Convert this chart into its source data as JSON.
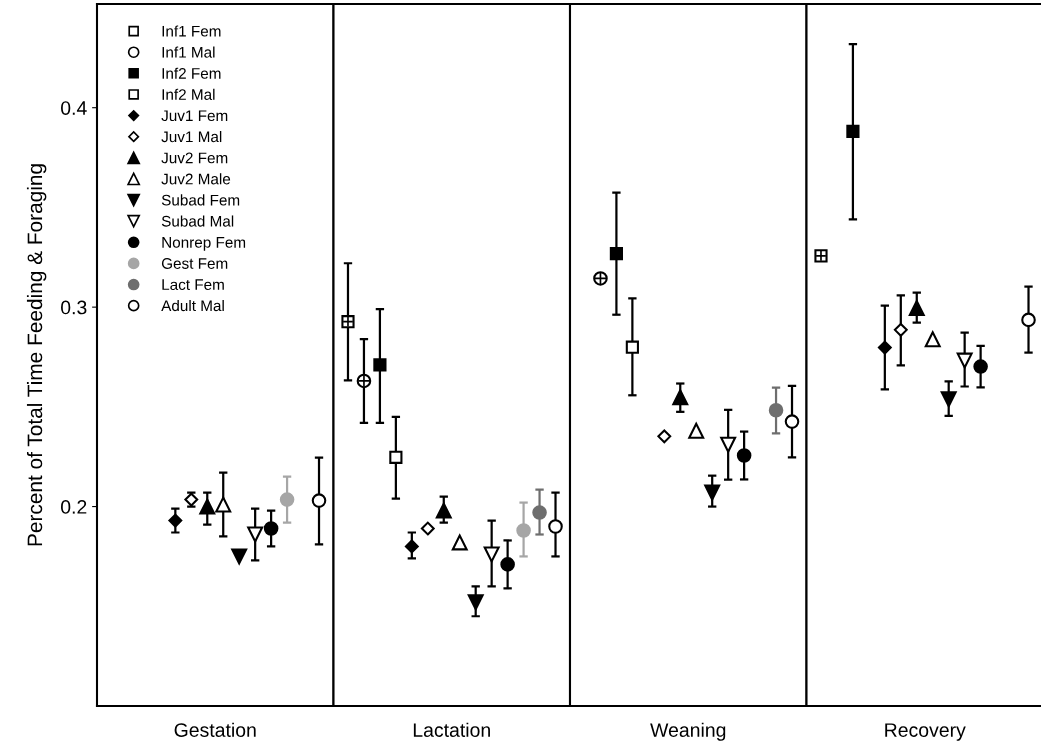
{
  "chart_data": {
    "type": "scatter",
    "ylabel": "Percent of Total Time Feeding & Foraging",
    "categories": [
      "Gestation",
      "Lactation",
      "Weaning",
      "Recovery"
    ],
    "ylim": [
      0.1,
      0.452
    ],
    "yticks": [
      0.2,
      0.3,
      0.4
    ],
    "grid": false,
    "legend": "top left",
    "series": [
      {
        "name": "Inf1 Fem",
        "color": "#000000",
        "marker": "square-plus",
        "values": [
          null,
          0.2927,
          null,
          0.3257
        ],
        "errors": [
          null,
          [
            0.2633,
            0.322
          ],
          null,
          null
        ]
      },
      {
        "name": "Inf1 Mal",
        "color": "#000000",
        "marker": "circle-plus",
        "values": [
          null,
          0.263,
          0.3144,
          null
        ],
        "errors": [
          null,
          [
            0.242,
            0.284
          ],
          null,
          null
        ]
      },
      {
        "name": "Inf2 Fem",
        "color": "#000000",
        "marker": "square",
        "values": [
          null,
          0.271,
          0.3268,
          0.3881
        ],
        "errors": [
          null,
          [
            0.242,
            0.299
          ],
          [
            0.2962,
            0.3574
          ],
          [
            0.344,
            0.4319
          ]
        ]
      },
      {
        "name": "Inf2 Mal",
        "color": "#000000",
        "marker": "square-open",
        "values": [
          null,
          0.2247,
          0.2799,
          null
        ],
        "errors": [
          null,
          [
            0.204,
            0.245
          ],
          [
            0.2558,
            0.3044
          ],
          null
        ]
      },
      {
        "name": "Juv1 Fem",
        "color": "#000000",
        "marker": "diamond",
        "values": [
          0.193,
          0.18,
          null,
          0.2797
        ],
        "errors": [
          [
            0.187,
            0.199
          ],
          [
            0.174,
            0.187
          ],
          null,
          [
            0.2588,
            0.3008
          ]
        ]
      },
      {
        "name": "Juv1 Mal",
        "color": "#000000",
        "marker": "diamond-open",
        "values": [
          0.2035,
          0.189,
          0.2352,
          0.2886
        ],
        "errors": [
          [
            0.2,
            0.207
          ],
          null,
          null,
          [
            0.2708,
            0.3059
          ]
        ]
      },
      {
        "name": "Juv2 Fem",
        "color": "#000000",
        "marker": "triangle",
        "values": [
          0.2,
          0.198,
          0.2548,
          0.2996
        ],
        "errors": [
          [
            0.191,
            0.207
          ],
          [
            0.192,
            0.205
          ],
          [
            0.2475,
            0.2617
          ],
          [
            0.2922,
            0.3073
          ]
        ]
      },
      {
        "name": "Juv2 Male",
        "color": "#000000",
        "marker": "triangle-open",
        "values": [
          0.201,
          0.182,
          0.238,
          0.2839
        ],
        "errors": [
          [
            0.185,
            0.217
          ],
          null,
          null,
          null
        ]
      },
      {
        "name": "Subad Fem",
        "color": "#000000",
        "marker": "triangle-down",
        "values": [
          0.175,
          0.152,
          0.207,
          0.2538
        ],
        "errors": [
          null,
          [
            0.145,
            0.16
          ],
          [
            0.2,
            0.2155
          ],
          [
            0.2455,
            0.2628
          ]
        ]
      },
      {
        "name": "Subad Mal",
        "color": "#000000",
        "marker": "triangle-down-open",
        "values": [
          0.186,
          0.176,
          0.231,
          0.2732
        ],
        "errors": [
          [
            0.173,
            0.199
          ],
          [
            0.16,
            0.193
          ],
          [
            0.2135,
            0.2485
          ],
          [
            0.2602,
            0.2872
          ]
        ]
      },
      {
        "name": "Nonrep Fem",
        "color": "#000000",
        "marker": "circle",
        "values": [
          0.189,
          0.171,
          0.2256,
          0.2702
        ],
        "errors": [
          [
            0.18,
            0.198
          ],
          [
            0.159,
            0.183
          ],
          [
            0.2136,
            0.2376
          ],
          [
            0.2598,
            0.2806
          ]
        ]
      },
      {
        "name": "Gest Fem",
        "color": "#a6a6a6",
        "marker": "circle",
        "values": [
          0.2035,
          0.188,
          null,
          null
        ],
        "errors": [
          [
            0.192,
            0.215
          ],
          [
            0.175,
            0.202
          ],
          null,
          null
        ]
      },
      {
        "name": "Lact Fem",
        "color": "#6e6e6e",
        "marker": "circle",
        "values": [
          null,
          0.197,
          0.2483,
          null
        ],
        "errors": [
          null,
          [
            0.186,
            0.2085
          ],
          [
            0.2367,
            0.2596
          ],
          null
        ]
      },
      {
        "name": "Adult Mal",
        "color": "#000000",
        "marker": "circle-open",
        "values": [
          0.203,
          0.19,
          0.2426,
          0.2936
        ],
        "errors": [
          [
            0.181,
            0.2245
          ],
          [
            0.175,
            0.207
          ],
          [
            0.2247,
            0.2605
          ],
          [
            0.2772,
            0.3103
          ]
        ]
      }
    ]
  }
}
